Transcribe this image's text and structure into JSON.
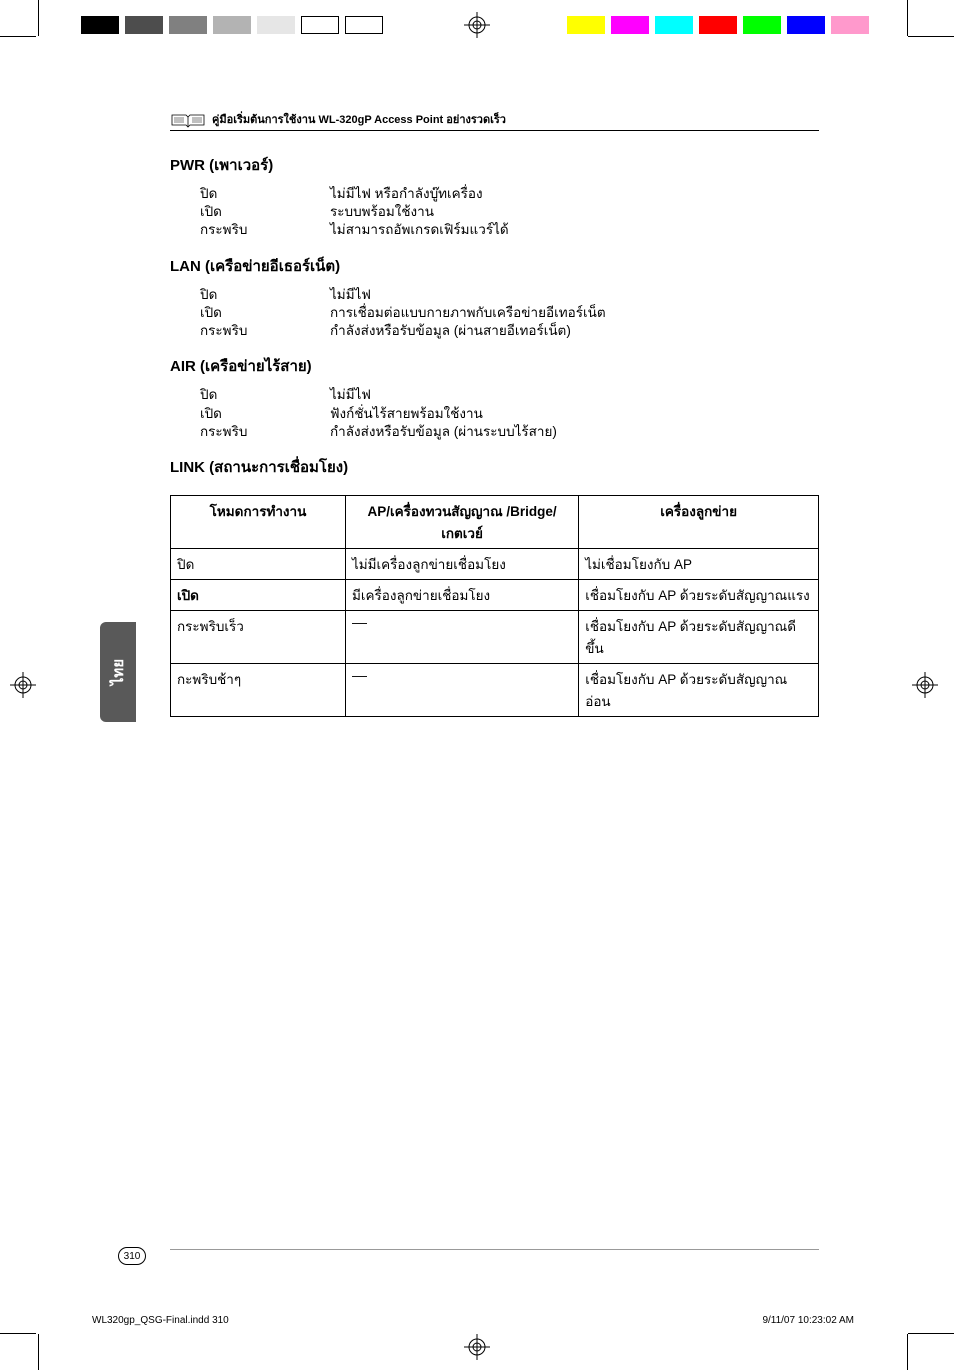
{
  "colorbars": {
    "left": [
      "#000000",
      "#4d4d4d",
      "#808080",
      "#b3b3b3",
      "#e6e6e6",
      "#ffffff",
      "#ffffff"
    ],
    "left_bordered": [
      false,
      false,
      false,
      false,
      false,
      true,
      true
    ],
    "right": [
      "#ffff00",
      "#ff00ff",
      "#00ffff",
      "#ff0000",
      "#00ff00",
      "#0000ff",
      "#ff99cc"
    ]
  },
  "header": {
    "title": "คู่มือเริ่มต้นการใช้งาน WL-320gP Access Point อย่างรวดเร็ว"
  },
  "sections": {
    "pwr": {
      "head": "PWR (เพาเวอร์)",
      "rows": [
        {
          "k": "ปิด",
          "v": "ไม่มีไฟ หรือกำลังบู๊ทเครื่อง"
        },
        {
          "k": "เปิด",
          "v": "ระบบพร้อมใช้งาน"
        },
        {
          "k": "กระพริบ",
          "v": "ไม่สามารถอัพเกรดเฟิร์มแวร์ได้"
        }
      ]
    },
    "lan": {
      "head": "LAN (เครือข่ายอีเธอร์เน็ต)",
      "rows": [
        {
          "k": "ปิด",
          "v": "ไม่มีไฟ"
        },
        {
          "k": "เปิด",
          "v": "การเชื่อมต่อแบบกายภาพกับเครือข่ายอีเทอร์เน็ต"
        },
        {
          "k": "กระพริบ",
          "v": "กำลังส่งหรือรับข้อมูล (ผ่านสายอีเทอร์เน็ต)"
        }
      ]
    },
    "air": {
      "head": "AIR (เครือข่ายไร้สาย)",
      "rows": [
        {
          "k": "ปิด",
          "v": "ไม่มีไฟ"
        },
        {
          "k": "เปิด",
          "v": "ฟังก์ชั่นไร้สายพร้อมใช้งาน"
        },
        {
          "k": "กระพริบ",
          "v": "กำลังส่งหรือรับข้อมูล (ผ่านระบบไร้สาย)"
        }
      ]
    },
    "link": {
      "head": "LINK (สถานะการเชื่อมโยง)",
      "table": {
        "headers": [
          "โหมดการทำงาน",
          "AP/เครื่องทวนสัญญาณ /Bridge/เกตเวย์",
          "เครื่องลูกข่าย"
        ],
        "col_widths": [
          "27%",
          "36%",
          "37%"
        ],
        "rows": [
          {
            "c0": "ปิด",
            "c1": "ไม่มีเครื่องลูกข่ายเชื่อมโยง",
            "c2": "ไม่เชื่อมโยงกับ AP",
            "bold": false
          },
          {
            "c0": "เปิด",
            "c1": "มีเครื่องลูกข่ายเชื่อมโยง",
            "c2": "เชื่อมโยงกับ AP ด้วยระดับสัญญาณแรง",
            "bold": true
          },
          {
            "c0": "กระพริบเร็ว",
            "c1": "––",
            "c2": "เชื่อมโยงกับ AP ด้วยระดับสัญญาณดีขึ้น",
            "bold": false
          },
          {
            "c0": "กะพริบช้าๆ",
            "c1": "––",
            "c2": "เชื่อมโยงกับ AP ด้วยระดับสัญญาณอ่อน",
            "bold": false
          }
        ]
      }
    }
  },
  "sidetab": "ไทย",
  "page_number": "310",
  "footer": {
    "left": "WL320gp_QSG-Final.indd   310",
    "right": "9/11/07   10:23:02 AM"
  }
}
